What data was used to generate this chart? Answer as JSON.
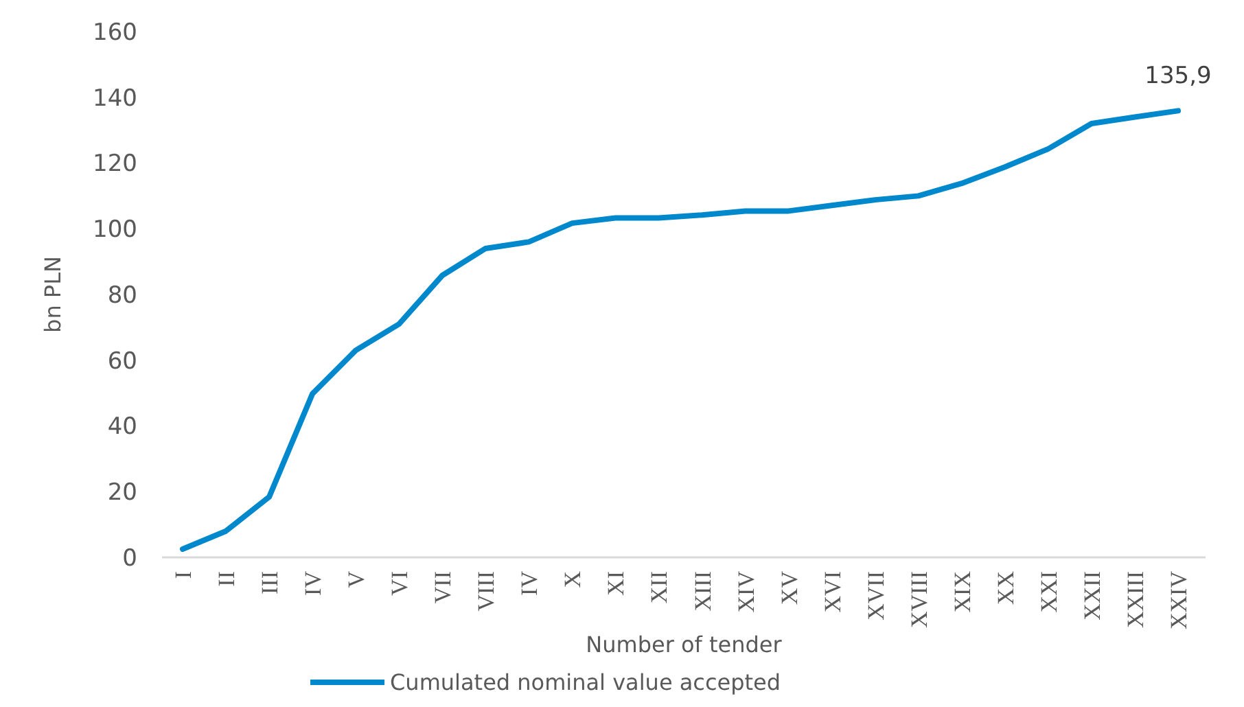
{
  "chart_data": {
    "type": "line",
    "xlabel": "Number of tender",
    "ylabel": "bn PLN",
    "categories": [
      "I",
      "II",
      "III",
      "IV",
      "V",
      "VI",
      "VII",
      "VIII",
      "IV",
      "X",
      "XI",
      "XII",
      "XIII",
      "XIV",
      "XV",
      "XVI",
      "XVII",
      "XVIII",
      "XIX",
      "XX",
      "XXI",
      "XXII",
      "XXIII",
      "XXIV"
    ],
    "series": [
      {
        "name": "Cumulated nominal value accepted",
        "color": "#0088cc",
        "values": [
          2.5,
          8,
          18.4,
          49.8,
          63,
          71,
          85.8,
          94,
          96,
          101.7,
          103.3,
          103.3,
          104.2,
          105.4,
          105.4,
          107.1,
          108.8,
          110,
          113.8,
          118.8,
          124.3,
          132,
          134,
          135.9
        ],
        "value_labels": [
          null,
          null,
          null,
          null,
          null,
          null,
          null,
          null,
          null,
          null,
          null,
          null,
          null,
          null,
          null,
          null,
          null,
          null,
          null,
          null,
          null,
          null,
          null,
          "135,9"
        ]
      }
    ],
    "ylim": [
      0,
      160
    ],
    "yticks": [
      0,
      20,
      40,
      60,
      80,
      100,
      120,
      140,
      160
    ],
    "grid": false,
    "legend": "bottom",
    "marker": "none",
    "line_style": "solid"
  }
}
